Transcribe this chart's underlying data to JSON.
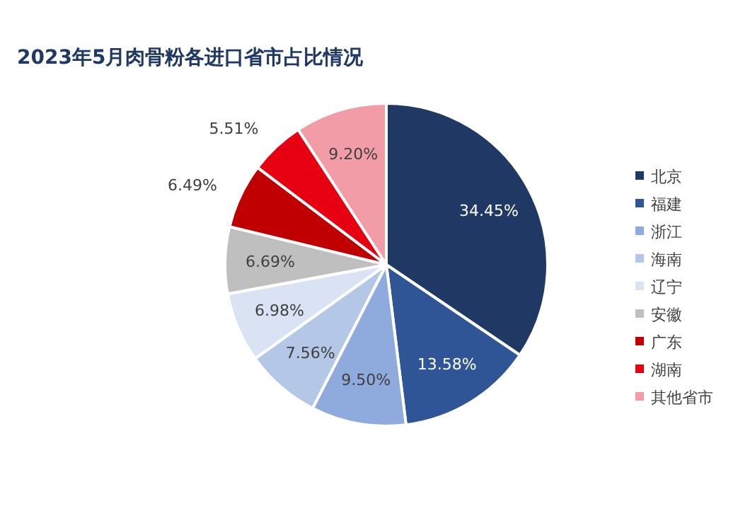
{
  "chart_data": {
    "type": "pie",
    "title": "2023年5月肉骨粉各进口省市占比情况",
    "categories": [
      "北京",
      "福建",
      "浙江",
      "海南",
      "辽宁",
      "安徽",
      "广东",
      "湖南",
      "其他省市"
    ],
    "values": [
      34.45,
      13.58,
      9.5,
      7.56,
      6.98,
      6.69,
      6.49,
      5.51,
      9.2
    ],
    "colors": [
      "#203864",
      "#2f5597",
      "#8faadc",
      "#b4c7e7",
      "#dae3f3",
      "#bfbfbf",
      "#c00000",
      "#e60012",
      "#f19ca6"
    ],
    "value_labels": [
      "34.45%",
      "13.58%",
      "9.50%",
      "7.56%",
      "6.98%",
      "6.69%",
      "6.49%",
      "5.51%",
      "9.20%"
    ],
    "legend": "right"
  }
}
